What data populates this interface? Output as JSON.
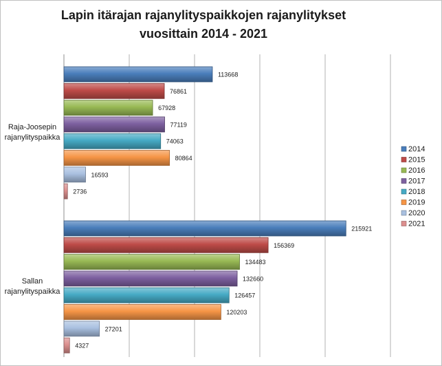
{
  "chart_data": {
    "type": "bar",
    "orientation": "horizontal",
    "title": [
      "Lapin itärajan rajanylityspaikkojen rajanylitykset",
      "vuosittain 2014 -  2021"
    ],
    "categories": [
      "Raja-Joosepin rajanylityspaikka",
      "Sallan rajanylityspaikka"
    ],
    "category_lines": [
      [
        "Raja-Joosepin",
        "rajanylityspaikka"
      ],
      [
        "Sallan",
        "rajanylityspaikka"
      ]
    ],
    "series": [
      {
        "name": "2014",
        "values": [
          113668,
          215921
        ],
        "color": "#4a7ebb"
      },
      {
        "name": "2015",
        "values": [
          76861,
          156369
        ],
        "color": "#be4b48"
      },
      {
        "name": "2016",
        "values": [
          67928,
          134483
        ],
        "color": "#98b954"
      },
      {
        "name": "2017",
        "values": [
          77119,
          132660
        ],
        "color": "#7d60a0"
      },
      {
        "name": "2018",
        "values": [
          74063,
          126457
        ],
        "color": "#46aac5"
      },
      {
        "name": "2019",
        "values": [
          80864,
          120203
        ],
        "color": "#f69546"
      },
      {
        "name": "2020",
        "values": [
          16593,
          27201
        ],
        "color": "#a9c0e0"
      },
      {
        "name": "2021",
        "values": [
          2736,
          4327
        ],
        "color": "#dc8f8e"
      }
    ],
    "xlim": [
      0,
      250000
    ],
    "x_tick_step": 50000,
    "grid": true,
    "x_tick_labels_shown": false,
    "data_labels": true,
    "legend_position": "right"
  }
}
